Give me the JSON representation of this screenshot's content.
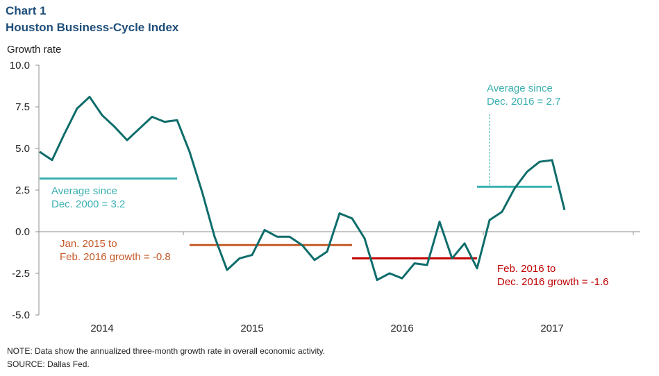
{
  "chart_number": "Chart 1",
  "chart_data": {
    "type": "line",
    "title": "Houston Business-Cycle Index",
    "ylabel": "Growth rate",
    "xlabel": "",
    "ylim": [
      -5,
      10
    ],
    "yticks": [
      "10.0",
      "7.5",
      "5.0",
      "2.5",
      "0.0",
      "-2.5",
      "-5.0"
    ],
    "ytick_values": [
      10,
      7.5,
      5,
      2.5,
      0,
      -2.5,
      -5
    ],
    "year_labels": [
      "2014",
      "2015",
      "2016",
      "2017"
    ],
    "x_start": "2014-01",
    "series": [
      {
        "color": "#0e6d6b",
        "x": [
          "2014-01",
          "2014-02",
          "2014-03",
          "2014-04",
          "2014-05",
          "2014-06",
          "2014-07",
          "2014-08",
          "2014-09",
          "2014-10",
          "2014-11",
          "2014-12",
          "2015-01",
          "2015-02",
          "2015-03",
          "2015-04",
          "2015-05",
          "2015-06",
          "2015-07",
          "2015-08",
          "2015-09",
          "2015-10",
          "2015-11",
          "2015-12",
          "2016-01",
          "2016-02",
          "2016-03",
          "2016-04",
          "2016-05",
          "2016-06",
          "2016-07",
          "2016-08",
          "2016-09",
          "2016-10",
          "2016-11",
          "2016-12",
          "2017-01",
          "2017-02",
          "2017-03",
          "2017-04",
          "2017-05",
          "2017-06",
          "2017-07"
        ],
        "values": [
          4.8,
          4.3,
          5.9,
          7.4,
          8.1,
          7.0,
          6.3,
          5.5,
          6.2,
          6.9,
          6.6,
          6.7,
          4.8,
          2.4,
          -0.3,
          -2.3,
          -1.6,
          -1.4,
          0.1,
          -0.3,
          -0.3,
          -0.8,
          -1.7,
          -1.2,
          1.1,
          0.8,
          -0.4,
          -2.9,
          -2.5,
          -2.8,
          -1.9,
          -2.0,
          0.6,
          -1.6,
          -0.7,
          -2.2,
          0.7,
          1.2,
          2.6,
          3.6,
          4.2,
          4.3,
          1.3
        ]
      }
    ],
    "reference_lines": [
      {
        "from": "2014-01",
        "to": "2014-12",
        "value": 3.2,
        "color": "#3aafb0"
      },
      {
        "from": "2015-01",
        "to": "2016-02",
        "value": -0.8,
        "color": "#c55a28"
      },
      {
        "from": "2016-02",
        "to": "2016-12",
        "value": -1.6,
        "color": "#c00000"
      },
      {
        "from": "2016-12",
        "to": "2017-06",
        "value": 2.7,
        "color": "#3aafb0"
      }
    ],
    "annotations": [
      {
        "lines": [
          "Average since",
          "Dec. 2000 = 3.2"
        ],
        "color": "#3aafb0"
      },
      {
        "lines": [
          "Jan. 2015 to",
          "Feb. 2016 growth = -0.8"
        ],
        "color": "#c55a28"
      },
      {
        "lines": [
          "Feb. 2016 to",
          "Dec. 2016 growth = -1.6"
        ],
        "color": "#c00000"
      },
      {
        "lines": [
          "Average since",
          "Dec. 2016 = 2.7"
        ],
        "color": "#3aafb0"
      }
    ]
  },
  "note": "NOTE: Data show the annualized three-month growth rate in overall economic activity.",
  "source": "SOURCE: Dallas Fed."
}
